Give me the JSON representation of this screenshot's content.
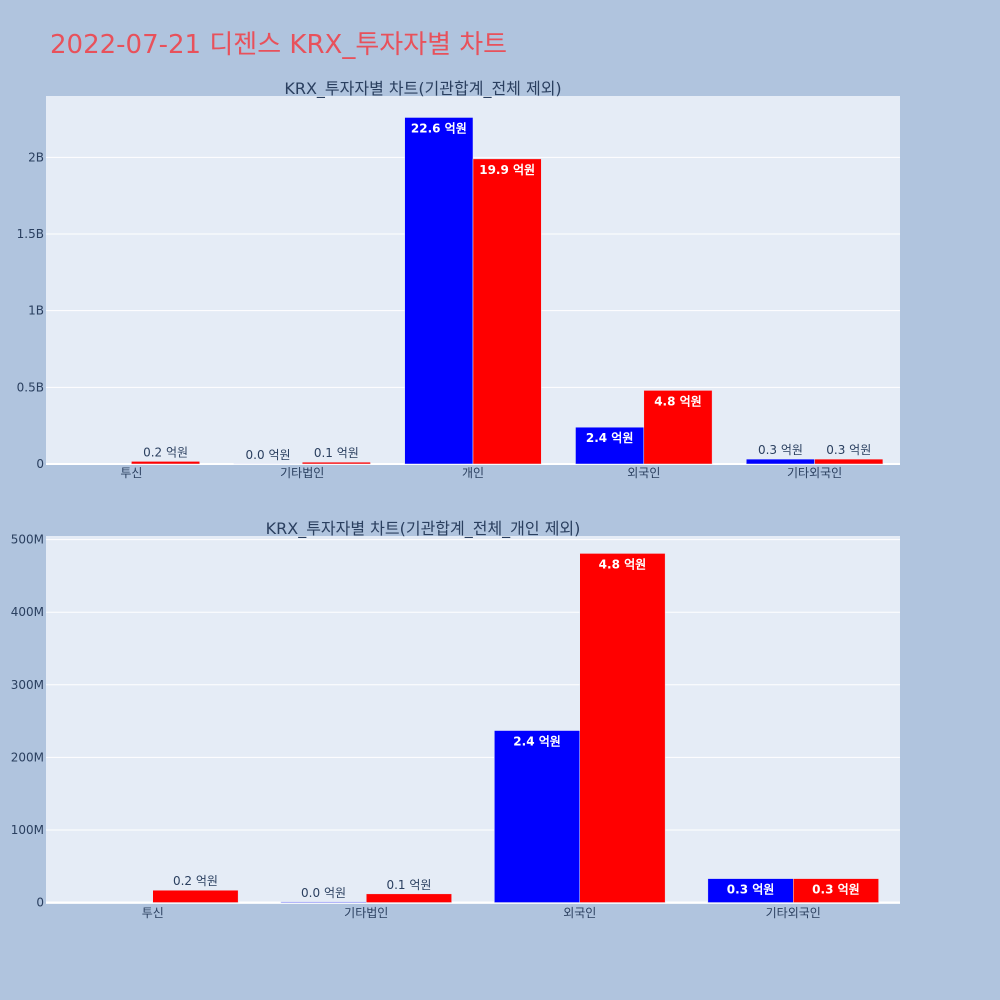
{
  "title": "2022-07-21 디젠스 KRX_투자자별 차트",
  "colors": {
    "paper": "#b0c4de",
    "plot_bg": "#e5ecf6",
    "grid": "#ffffff",
    "buy": "#0000ff",
    "sell": "#ff0000",
    "title": "#e8515b",
    "text": "#2a3f5f"
  },
  "chart_data": [
    {
      "type": "bar",
      "title": "KRX_투자자별 차트(기관합계_전체 제외)",
      "categories": [
        "투신",
        "기타법인",
        "개인",
        "외국인",
        "기타외국인"
      ],
      "ylim": [
        0,
        2400000000
      ],
      "yticks": [
        {
          "value": 0,
          "label": "0"
        },
        {
          "value": 500000000,
          "label": "0.5B"
        },
        {
          "value": 1000000000,
          "label": "1B"
        },
        {
          "value": 1500000000,
          "label": "1.5B"
        },
        {
          "value": 2000000000,
          "label": "2B"
        }
      ],
      "series": [
        {
          "color_key": "buy",
          "values": [
            0,
            1000000,
            2260000000,
            240000000,
            32000000
          ],
          "labels": [
            "",
            "0.0 억원",
            "22.6 억원",
            "2.4 억원",
            "0.3 억원"
          ]
        },
        {
          "color_key": "sell",
          "values": [
            17000000,
            12000000,
            1990000000,
            480000000,
            32000000
          ],
          "labels": [
            "0.2 억원",
            "0.1 억원",
            "19.9 억원",
            "4.8 억원",
            "0.3 억원"
          ]
        }
      ]
    },
    {
      "type": "bar",
      "title": "KRX_투자자별 차트(기관합계_전체_개인 제외)",
      "categories": [
        "투신",
        "기타법인",
        "외국인",
        "기타외국인"
      ],
      "ylim": [
        -2000000,
        505000000
      ],
      "yticks": [
        {
          "value": 0,
          "label": "0"
        },
        {
          "value": 100000000,
          "label": "100M"
        },
        {
          "value": 200000000,
          "label": "200M"
        },
        {
          "value": 300000000,
          "label": "300M"
        },
        {
          "value": 400000000,
          "label": "400M"
        },
        {
          "value": 500000000,
          "label": "500M"
        }
      ],
      "series": [
        {
          "color_key": "buy",
          "values": [
            0,
            1000000,
            237000000,
            33000000
          ],
          "labels": [
            "",
            "0.0 억원",
            "2.4 억원",
            "0.3 억원"
          ]
        },
        {
          "color_key": "sell",
          "values": [
            17000000,
            12000000,
            481000000,
            33000000
          ],
          "labels": [
            "0.2 억원",
            "0.1 억원",
            "4.8 억원",
            "0.3 억원"
          ]
        }
      ]
    }
  ]
}
